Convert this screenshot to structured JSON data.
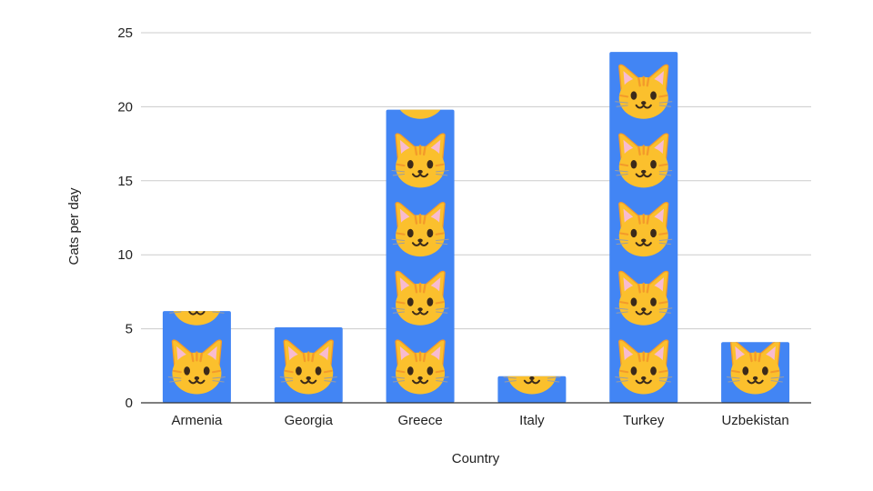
{
  "chart_data": {
    "type": "bar",
    "title": "",
    "xlabel": "Country",
    "ylabel": "Cats per day",
    "categories": [
      "Armenia",
      "Georgia",
      "Greece",
      "Italy",
      "Turkey",
      "Uzbekistan"
    ],
    "values": [
      6.2,
      5.1,
      19.8,
      1.8,
      23.7,
      4.1
    ],
    "ylim": [
      0,
      25
    ],
    "yticks": [
      "0",
      "5",
      "10",
      "15",
      "20",
      "25"
    ],
    "grid": true,
    "legend": "none",
    "bar_color": "#4285f4",
    "pictogram": "cat-face-icon",
    "pictogram_unit": 4.65,
    "colors": {
      "cat_face": "#fbc02d",
      "cat_stripe": "#f39a2a",
      "cat_ear_inner": "#f8bbd0",
      "cat_features": "#3b2a1a",
      "gridline": "#cccccc",
      "axis": "#333333"
    }
  }
}
